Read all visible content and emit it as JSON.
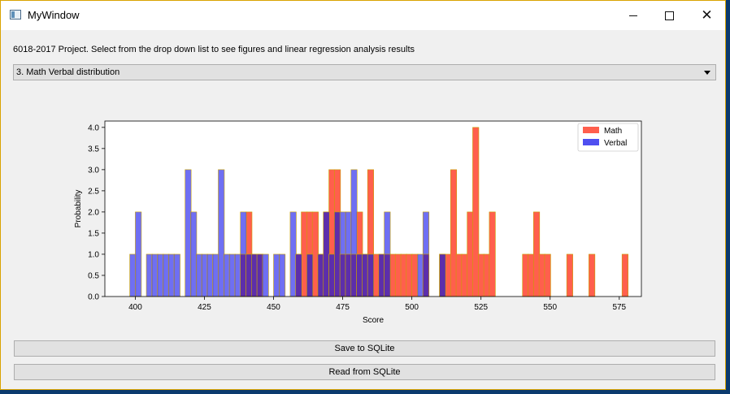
{
  "window": {
    "title": "MyWindow"
  },
  "description": "6018-2017 Project. Select from the drop down list to see figures and linear regression analysis results",
  "dropdown": {
    "selected": "3. Math Verbal distribution"
  },
  "buttons": {
    "save": "Save to SQLite",
    "read": "Read from SQLite"
  },
  "colors": {
    "math": "#ff5f4d",
    "verbal": "#4f4ff0",
    "overlap": "#5b2aa6",
    "bar_edge": "#c9a100"
  },
  "chart_data": {
    "type": "bar",
    "title": "",
    "xlabel": "Score",
    "ylabel": "Probability",
    "xlim": [
      389,
      583
    ],
    "ylim": [
      0,
      4.15
    ],
    "xticks": [
      400,
      425,
      450,
      475,
      500,
      525,
      550,
      575
    ],
    "yticks": [
      0.0,
      0.5,
      1.0,
      1.5,
      2.0,
      2.5,
      3.0,
      3.5,
      4.0
    ],
    "bin_width": 2.2,
    "legend": {
      "position": "top-right",
      "entries": [
        "Math",
        "Verbal"
      ]
    },
    "series": [
      {
        "name": "Math",
        "color": "#ff5f4d",
        "bars": [
          [
            438,
            1
          ],
          [
            440,
            2
          ],
          [
            442,
            1
          ],
          [
            444,
            1
          ],
          [
            458,
            1
          ],
          [
            460,
            2
          ],
          [
            462,
            2
          ],
          [
            464,
            2
          ],
          [
            466,
            1
          ],
          [
            468,
            2
          ],
          [
            470,
            3
          ],
          [
            472,
            3
          ],
          [
            474,
            1
          ],
          [
            476,
            1
          ],
          [
            478,
            1
          ],
          [
            480,
            2
          ],
          [
            482,
            1
          ],
          [
            484,
            3
          ],
          [
            486,
            1
          ],
          [
            488,
            1
          ],
          [
            490,
            1
          ],
          [
            492,
            1
          ],
          [
            494,
            1
          ],
          [
            496,
            1
          ],
          [
            498,
            1
          ],
          [
            500,
            1
          ],
          [
            504,
            1
          ],
          [
            510,
            1
          ],
          [
            512,
            1
          ],
          [
            514,
            3
          ],
          [
            516,
            1
          ],
          [
            518,
            1
          ],
          [
            520,
            2
          ],
          [
            522,
            4
          ],
          [
            524,
            1
          ],
          [
            526,
            1
          ],
          [
            528,
            2
          ],
          [
            540,
            1
          ],
          [
            542,
            1
          ],
          [
            544,
            2
          ],
          [
            546,
            1
          ],
          [
            548,
            1
          ],
          [
            556,
            1
          ],
          [
            564,
            1
          ],
          [
            576,
            1
          ]
        ]
      },
      {
        "name": "Verbal",
        "color": "#4f4ff0",
        "bars": [
          [
            398,
            1
          ],
          [
            400,
            2
          ],
          [
            404,
            1
          ],
          [
            406,
            1
          ],
          [
            408,
            1
          ],
          [
            410,
            1
          ],
          [
            412,
            1
          ],
          [
            414,
            1
          ],
          [
            418,
            3
          ],
          [
            420,
            2
          ],
          [
            422,
            1
          ],
          [
            424,
            1
          ],
          [
            426,
            1
          ],
          [
            428,
            1
          ],
          [
            430,
            3
          ],
          [
            432,
            1
          ],
          [
            434,
            1
          ],
          [
            436,
            1
          ],
          [
            438,
            2
          ],
          [
            440,
            1
          ],
          [
            442,
            1
          ],
          [
            444,
            1
          ],
          [
            446,
            1
          ],
          [
            450,
            1
          ],
          [
            452,
            1
          ],
          [
            456,
            2
          ],
          [
            458,
            1
          ],
          [
            462,
            1
          ],
          [
            466,
            1
          ],
          [
            468,
            2
          ],
          [
            470,
            1
          ],
          [
            472,
            2
          ],
          [
            474,
            2
          ],
          [
            476,
            2
          ],
          [
            478,
            3
          ],
          [
            480,
            1
          ],
          [
            482,
            1
          ],
          [
            484,
            1
          ],
          [
            488,
            1
          ],
          [
            490,
            2
          ],
          [
            502,
            1
          ],
          [
            504,
            2
          ],
          [
            510,
            1
          ]
        ]
      }
    ]
  }
}
